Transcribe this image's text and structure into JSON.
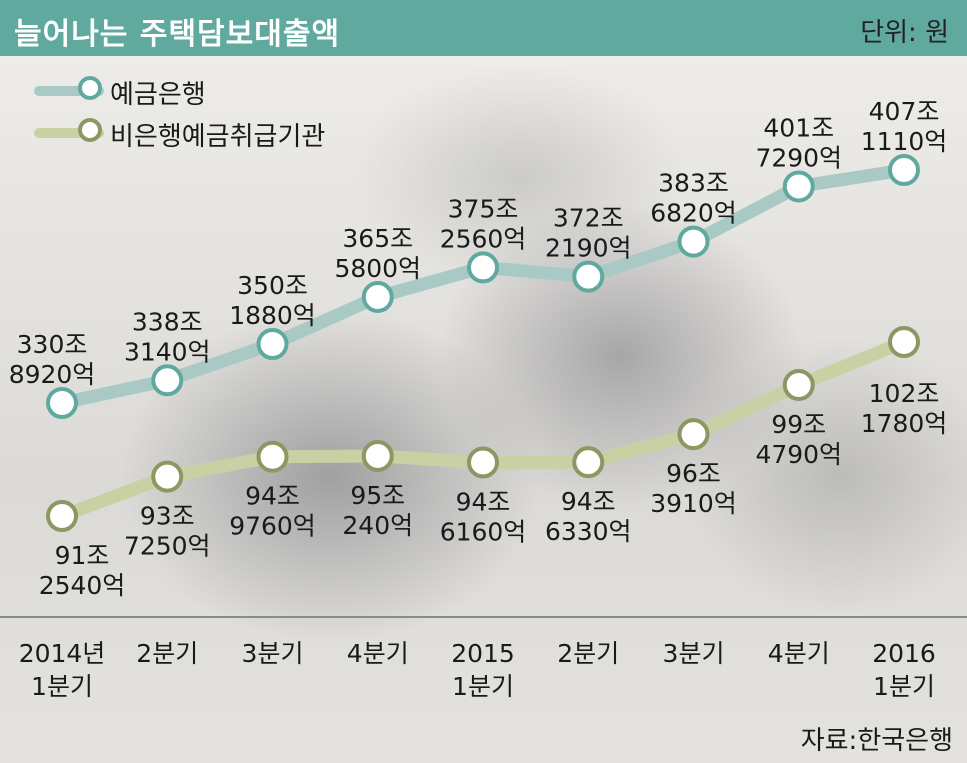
{
  "header": {
    "title": "늘어나는 주택담보대출액",
    "unit": "단위: 원"
  },
  "legend": [
    {
      "label": "예금은행",
      "color": "#a9cac4",
      "ring": "#5fa99f"
    },
    {
      "label": "비은행예금취급기관",
      "color": "#c9d1a4",
      "ring": "#8c9762"
    }
  ],
  "source": "자료:한국은행",
  "chart_data": {
    "type": "line",
    "categories": [
      [
        "2014년",
        "1분기"
      ],
      [
        "2분기"
      ],
      [
        "3분기"
      ],
      [
        "4분기"
      ],
      [
        "2015",
        "1분기"
      ],
      [
        "2분기"
      ],
      [
        "3분기"
      ],
      [
        "4분기"
      ],
      [
        "2016",
        "1분기"
      ]
    ],
    "series": [
      {
        "name": "예금은행",
        "values": [
          330.892,
          338.314,
          350.188,
          365.58,
          375.256,
          372.219,
          383.682,
          401.729,
          407.111
        ],
        "labels": [
          [
            "330조",
            "8920억"
          ],
          [
            "338조",
            "3140억"
          ],
          [
            "350조",
            "1880억"
          ],
          [
            "365조",
            "5800억"
          ],
          [
            "375조",
            "2560억"
          ],
          [
            "372조",
            "2190억"
          ],
          [
            "383조",
            "6820억"
          ],
          [
            "401조",
            "7290억"
          ],
          [
            "407조",
            "1110억"
          ]
        ]
      },
      {
        "name": "비은행예금취급기관",
        "values": [
          91.254,
          93.725,
          94.976,
          95.024,
          94.616,
          94.633,
          96.391,
          99.479,
          102.178
        ],
        "labels": [
          [
            "91조",
            "2540억"
          ],
          [
            "93조",
            "7250억"
          ],
          [
            "94조",
            "9760억"
          ],
          [
            "95조",
            "240억"
          ],
          [
            "94조",
            "6160억"
          ],
          [
            "94조",
            "6330억"
          ],
          [
            "96조",
            "3910억"
          ],
          [
            "99조",
            "4790억"
          ],
          [
            "102조",
            "1780억"
          ]
        ]
      }
    ],
    "grid": false
  }
}
